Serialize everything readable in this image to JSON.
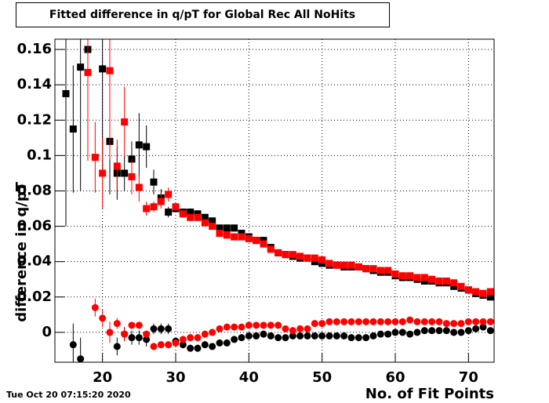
{
  "chart_data": {
    "type": "scatter",
    "title": "Fitted difference in q/pT for Global Rec All NoHits",
    "xlabel": "No. of Fit Points",
    "ylabel": "difference in q/pT",
    "timestamp": "Tue Oct 20 07:15:20 2020",
    "xlim": [
      13.5,
      73.5
    ],
    "ylim": [
      -0.0169,
      0.1658
    ],
    "xticks": [
      20,
      30,
      40,
      50,
      60,
      70
    ],
    "yticks": [
      0,
      0.02,
      0.04,
      0.06,
      0.08,
      0.1,
      0.12,
      0.14,
      0.16
    ],
    "grid": true,
    "x": [
      15,
      16,
      17,
      18,
      19,
      20,
      21,
      22,
      23,
      24,
      25,
      26,
      27,
      28,
      29,
      30,
      31,
      32,
      33,
      34,
      35,
      36,
      37,
      38,
      39,
      40,
      41,
      42,
      43,
      44,
      45,
      46,
      47,
      48,
      49,
      50,
      51,
      52,
      53,
      54,
      55,
      56,
      57,
      58,
      59,
      60,
      61,
      62,
      63,
      64,
      65,
      66,
      67,
      68,
      69,
      70,
      71,
      72,
      73
    ],
    "series": [
      {
        "color": "#000000",
        "marker": "square",
        "values": [
          0.135,
          0.115,
          0.15,
          0.16,
          null,
          0.149,
          0.108,
          0.09,
          0.09,
          0.098,
          0.106,
          0.105,
          0.085,
          0.076,
          0.068,
          0.07,
          0.068,
          0.068,
          0.067,
          0.065,
          0.063,
          0.059,
          0.059,
          0.059,
          0.056,
          0.054,
          0.052,
          0.052,
          0.048,
          0.045,
          0.044,
          0.043,
          0.042,
          0.042,
          0.04,
          0.039,
          0.038,
          0.038,
          0.037,
          0.037,
          0.037,
          0.036,
          0.035,
          0.034,
          0.034,
          0.032,
          0.031,
          0.031,
          0.03,
          0.029,
          0.029,
          0.028,
          0.028,
          0.026,
          0.025,
          0.024,
          0.022,
          0.021,
          0.02
        ],
        "errors": [
          0.075,
          0.036,
          0.07,
          0.05,
          null,
          0.06,
          0.03,
          0.015,
          0.01,
          0.01,
          0.018,
          0.012,
          0.007,
          0.005,
          0.003,
          0.002,
          0.002,
          0.002,
          0.002,
          0.002,
          0.002,
          0.002,
          0.002,
          0.002,
          0.002,
          0.002,
          0.002,
          0.002,
          0.002,
          0.002,
          0.001,
          0.001,
          0.001,
          0.001,
          0.001,
          0.001,
          0.001,
          0.001,
          0.001,
          0.001,
          0.001,
          0.001,
          0.001,
          0.001,
          0.001,
          0.001,
          0.001,
          0.001,
          0.001,
          0.001,
          0.001,
          0.001,
          0.001,
          0.001,
          0.001,
          0.001,
          0.001,
          0.001,
          0.001
        ]
      },
      {
        "color": "#ff0000",
        "marker": "square",
        "values": [
          null,
          null,
          null,
          0.147,
          0.099,
          0.09,
          0.148,
          0.094,
          0.119,
          0.088,
          0.082,
          0.07,
          0.071,
          0.074,
          0.078,
          0.071,
          0.067,
          0.065,
          0.065,
          0.062,
          0.06,
          0.056,
          0.055,
          0.054,
          0.054,
          0.053,
          0.052,
          0.05,
          0.047,
          0.045,
          0.044,
          0.044,
          0.043,
          0.042,
          0.042,
          0.041,
          0.039,
          0.038,
          0.038,
          0.038,
          0.037,
          0.036,
          0.036,
          0.035,
          0.035,
          0.033,
          0.032,
          0.032,
          0.031,
          0.031,
          0.03,
          0.029,
          0.029,
          0.028,
          0.026,
          0.024,
          0.023,
          0.022,
          0.023
        ],
        "errors": [
          null,
          null,
          null,
          0.05,
          0.02,
          0.02,
          0.05,
          0.015,
          0.02,
          0.01,
          0.008,
          0.004,
          0.003,
          0.004,
          0.004,
          0.002,
          0.002,
          0.002,
          0.002,
          0.002,
          0.002,
          0.002,
          0.002,
          0.002,
          0.002,
          0.002,
          0.002,
          0.002,
          0.002,
          0.002,
          0.001,
          0.001,
          0.001,
          0.001,
          0.001,
          0.001,
          0.001,
          0.001,
          0.001,
          0.001,
          0.001,
          0.001,
          0.001,
          0.001,
          0.001,
          0.001,
          0.001,
          0.001,
          0.001,
          0.001,
          0.001,
          0.001,
          0.001,
          0.001,
          0.001,
          0.001,
          0.001,
          0.001,
          0.001
        ]
      },
      {
        "color": "#000000",
        "marker": "circle",
        "values": [
          null,
          -0.007,
          -0.015,
          null,
          null,
          null,
          null,
          -0.008,
          -0.001,
          -0.003,
          -0.003,
          -0.004,
          0.002,
          0.002,
          0.002,
          -0.005,
          -0.007,
          -0.009,
          -0.009,
          -0.007,
          -0.008,
          -0.006,
          -0.006,
          -0.004,
          -0.003,
          -0.002,
          -0.002,
          -0.001,
          -0.002,
          -0.003,
          -0.003,
          -0.002,
          -0.002,
          -0.002,
          -0.002,
          -0.002,
          -0.002,
          -0.002,
          -0.002,
          -0.003,
          -0.003,
          -0.003,
          -0.002,
          -0.001,
          -0.001,
          0,
          0,
          -0.001,
          0,
          0.001,
          0.001,
          0.001,
          0.001,
          0,
          0,
          0.001,
          0.002,
          0.003,
          0.001
        ],
        "errors": [
          null,
          0.012,
          0.012,
          null,
          null,
          null,
          null,
          0.005,
          0.004,
          0.004,
          0.004,
          0.004,
          0.003,
          0.003,
          0.003,
          0.002,
          0.002,
          0.002,
          0.002,
          0.002,
          0.001,
          0.001,
          0.001,
          0.001,
          0.001,
          0.001,
          0.001,
          0.001,
          0.001,
          0.001,
          0.001,
          0.001,
          0.001,
          0.001,
          0.001,
          0.001,
          0.001,
          0.001,
          0.001,
          0.001,
          0.001,
          0.001,
          0.001,
          0.001,
          0.001,
          0.001,
          0.001,
          0.001,
          0.001,
          0.001,
          0.001,
          0.001,
          0.001,
          0.001,
          0.001,
          0.001,
          0.001,
          0.001,
          0.001
        ]
      },
      {
        "color": "#ff0000",
        "marker": "circle",
        "values": [
          null,
          null,
          null,
          null,
          0.014,
          0.008,
          0,
          0.005,
          -0.001,
          0.004,
          0.004,
          -0.001,
          -0.008,
          -0.007,
          -0.007,
          -0.006,
          -0.004,
          -0.003,
          -0.003,
          -0.001,
          0,
          0.002,
          0.003,
          0.003,
          0.003,
          0.004,
          0.004,
          0.004,
          0.004,
          0.004,
          0.002,
          0.001,
          0.002,
          0.002,
          0.005,
          0.005,
          0.006,
          0.006,
          0.006,
          0.006,
          0.006,
          0.006,
          0.006,
          0.006,
          0.006,
          0.006,
          0.006,
          0.007,
          0.006,
          0.006,
          0.006,
          0.006,
          0.005,
          0.005,
          0.005,
          0.006,
          0.006,
          0.006,
          0.006
        ],
        "errors": [
          null,
          null,
          null,
          null,
          0.005,
          0.005,
          0.006,
          0.003,
          0.004,
          0.002,
          0.002,
          0.002,
          0.002,
          0.002,
          0.002,
          0.002,
          0.002,
          0.002,
          0.002,
          0.002,
          0.001,
          0.001,
          0.001,
          0.001,
          0.001,
          0.001,
          0.001,
          0.001,
          0.001,
          0.001,
          0.001,
          0.001,
          0.001,
          0.001,
          0.001,
          0.001,
          0.001,
          0.001,
          0.001,
          0.001,
          0.001,
          0.001,
          0.001,
          0.001,
          0.001,
          0.001,
          0.001,
          0.001,
          0.001,
          0.001,
          0.001,
          0.001,
          0.001,
          0.001,
          0.001,
          0.001,
          0.001,
          0.001,
          0.001
        ]
      }
    ]
  }
}
